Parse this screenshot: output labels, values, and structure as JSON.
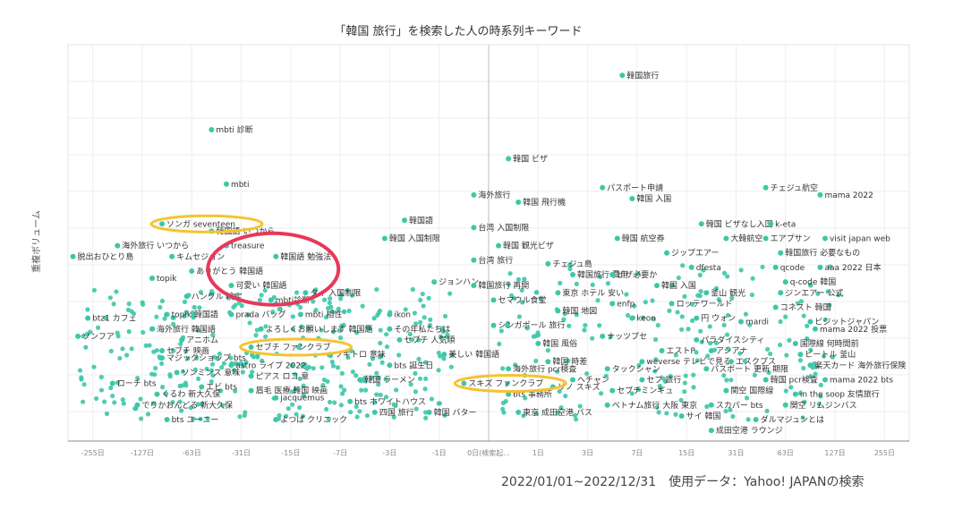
{
  "chart_data": {
    "type": "scatter",
    "title": "「韓国 旅行」を検索した人の時系列キーワード",
    "ylabel": "重複ボリューム",
    "x_ticks": [
      "-255日",
      "-127日",
      "-63日",
      "-31日",
      "-15日",
      "-7日",
      "-3日",
      "-1日",
      "0日(検索起...",
      "1日",
      "3日",
      "7日",
      "15日",
      "31日",
      "63日",
      "127日",
      "255日"
    ],
    "grid": true,
    "point_color": "#3cc7a8",
    "labeled_points": [
      {
        "label": "韓国旅行",
        "x": 2.7,
        "y": 95
      },
      {
        "label": "mbti 診断",
        "x": -5.6,
        "y": 80
      },
      {
        "label": "韓国 ビザ",
        "x": 0.4,
        "y": 72
      },
      {
        "label": "mbti",
        "x": -5.3,
        "y": 65
      },
      {
        "label": "パスポート申請",
        "x": 2.3,
        "y": 64
      },
      {
        "label": "チェジュ航空",
        "x": 5.6,
        "y": 64
      },
      {
        "label": "海外旅行",
        "x": -0.3,
        "y": 62
      },
      {
        "label": "韓国 飛行機",
        "x": 0.6,
        "y": 60
      },
      {
        "label": "韓国 入国",
        "x": 2.9,
        "y": 61
      },
      {
        "label": "mama 2022",
        "x": 6.7,
        "y": 62
      },
      {
        "label": "韓国語",
        "x": -1.7,
        "y": 55
      },
      {
        "label": "ソンガ seventeen",
        "x": -6.6,
        "y": 54
      },
      {
        "label": "韓国 ビザなし入国",
        "x": 4.3,
        "y": 54
      },
      {
        "label": "k-eta",
        "x": 5.7,
        "y": 54
      },
      {
        "label": "台湾 入国制限",
        "x": -0.3,
        "y": 53
      },
      {
        "label": "韓国語 いつから",
        "x": -5.6,
        "y": 52
      },
      {
        "label": "韓国 入国制限",
        "x": -2.1,
        "y": 50
      },
      {
        "label": "韓国 航空券",
        "x": 2.6,
        "y": 50
      },
      {
        "label": "大韓航空",
        "x": 4.8,
        "y": 50
      },
      {
        "label": "エアプサン",
        "x": 5.6,
        "y": 50
      },
      {
        "label": "visit japan web",
        "x": 6.8,
        "y": 50
      },
      {
        "label": "海外旅行 いつから",
        "x": -7.5,
        "y": 48
      },
      {
        "label": "treasure",
        "x": -5.3,
        "y": 48
      },
      {
        "label": "韓国 観光ビザ",
        "x": 0.2,
        "y": 48
      },
      {
        "label": "ジップエアー",
        "x": 3.6,
        "y": 46
      },
      {
        "label": "韓国旅行 必要なもの",
        "x": 5.9,
        "y": 46
      },
      {
        "label": "脱出おひとり島",
        "x": -8.4,
        "y": 45
      },
      {
        "label": "キムセジョン",
        "x": -6.4,
        "y": 45
      },
      {
        "label": "韓国語 勉強法",
        "x": -4.3,
        "y": 45
      },
      {
        "label": "台湾 旅行",
        "x": -0.3,
        "y": 44
      },
      {
        "label": "チェジュ島",
        "x": 1.2,
        "y": 43
      },
      {
        "label": "dfesta",
        "x": 4.1,
        "y": 42
      },
      {
        "label": "qcode",
        "x": 5.8,
        "y": 42
      },
      {
        "label": "aaa 2022 日本",
        "x": 6.7,
        "y": 42
      },
      {
        "label": "ありがとう 韓国語",
        "x": -6.0,
        "y": 41
      },
      {
        "label": "韓国旅行 費用",
        "x": 1.7,
        "y": 40
      },
      {
        "label": "ビザ必要か",
        "x": 2.5,
        "y": 40
      },
      {
        "label": "topik",
        "x": -6.8,
        "y": 39
      },
      {
        "label": "ジョンハン",
        "x": -1.1,
        "y": 38
      },
      {
        "label": "q-code 韓国",
        "x": 6.0,
        "y": 38
      },
      {
        "label": "可愛い 韓国語",
        "x": -5.2,
        "y": 37
      },
      {
        "label": "韓国旅行 再開",
        "x": -0.3,
        "y": 37
      },
      {
        "label": "韓国 入国",
        "x": 3.4,
        "y": 37
      },
      {
        "label": "釜山 観光",
        "x": 4.4,
        "y": 35
      },
      {
        "label": "ジンエアー 公式",
        "x": 5.9,
        "y": 35
      },
      {
        "label": "ハングル 検定",
        "x": -6.1,
        "y": 34
      },
      {
        "label": "mbti診断",
        "x": -4.4,
        "y": 33
      },
      {
        "label": "タイ 入国制限",
        "x": -3.7,
        "y": 35
      },
      {
        "label": "東京 ホテル 安い",
        "x": 1.4,
        "y": 35
      },
      {
        "label": "セマウル食堂",
        "x": 0.1,
        "y": 33
      },
      {
        "label": "enfp",
        "x": 2.5,
        "y": 32
      },
      {
        "label": "ロッテワールド",
        "x": 3.7,
        "y": 32
      },
      {
        "label": "コネスト 韓国",
        "x": 5.8,
        "y": 31
      },
      {
        "label": "韓国 地図",
        "x": 1.4,
        "y": 30
      },
      {
        "label": "btz1 カフェ",
        "x": -8.1,
        "y": 28
      },
      {
        "label": "topik 韓国語",
        "x": -6.5,
        "y": 29
      },
      {
        "label": "prada バッグ",
        "x": -5.2,
        "y": 29
      },
      {
        "label": "mbti 相性",
        "x": -3.8,
        "y": 29
      },
      {
        "label": "ikon",
        "x": -2.0,
        "y": 29
      },
      {
        "label": "keon",
        "x": 2.9,
        "y": 28
      },
      {
        "label": "円 ウォン",
        "x": 4.2,
        "y": 28
      },
      {
        "label": "mardi",
        "x": 5.1,
        "y": 27
      },
      {
        "label": "ビジットジャパン",
        "x": 6.5,
        "y": 27
      },
      {
        "label": "海外旅行 韓国語",
        "x": -6.8,
        "y": 25
      },
      {
        "label": "よろしくお願いします 韓国語",
        "x": -4.6,
        "y": 25
      },
      {
        "label": "その年私たちは",
        "x": -2.0,
        "y": 25
      },
      {
        "label": "シンガポール 旅行",
        "x": 0.1,
        "y": 26
      },
      {
        "label": "mama 2022 投票",
        "x": 6.6,
        "y": 25
      },
      {
        "label": "ソンフア",
        "x": -8.3,
        "y": 23
      },
      {
        "label": "アニホム",
        "x": -6.2,
        "y": 22
      },
      {
        "label": "セブチ 人気順",
        "x": -1.8,
        "y": 22
      },
      {
        "label": "ナッツプセ",
        "x": 2.3,
        "y": 23
      },
      {
        "label": "パラダイスシティ",
        "x": 4.2,
        "y": 22
      },
      {
        "label": "韓国 風俗",
        "x": 1.0,
        "y": 21
      },
      {
        "label": "国際線 何時間前",
        "x": 6.2,
        "y": 21
      },
      {
        "label": "セブチ 映画",
        "x": -6.6,
        "y": 19
      },
      {
        "label": "セブチ ファンクラブ",
        "x": -4.8,
        "y": 20
      },
      {
        "label": "エストP",
        "x": 3.5,
        "y": 19
      },
      {
        "label": "アシアナ",
        "x": 4.5,
        "y": 19
      },
      {
        "label": "ビートル 釜山",
        "x": 6.3,
        "y": 18
      },
      {
        "label": "美しい 韓国語",
        "x": -0.9,
        "y": 18
      },
      {
        "label": "ソキトロ 意味",
        "x": -3.2,
        "y": 18
      },
      {
        "label": "マジックショップ bts",
        "x": -6.6,
        "y": 17
      },
      {
        "label": "韓国 時差",
        "x": 1.2,
        "y": 16
      },
      {
        "label": "weverse テレビで見る",
        "x": 3.1,
        "y": 16
      },
      {
        "label": "エスクプス",
        "x": 4.9,
        "y": 16
      },
      {
        "label": "楽天カード 海外旅行保険",
        "x": 6.5,
        "y": 15
      },
      {
        "label": "astro ライブ 2022",
        "x": -5.2,
        "y": 15
      },
      {
        "label": "bts 誕生日",
        "x": -2.0,
        "y": 15
      },
      {
        "label": "海外旅行 pcr検査",
        "x": 0.4,
        "y": 14
      },
      {
        "label": "タックシャン",
        "x": 2.4,
        "y": 14
      },
      {
        "label": "パスポート 更新 期限",
        "x": 4.4,
        "y": 14
      },
      {
        "label": "ソンミンス 意味",
        "x": -6.3,
        "y": 13
      },
      {
        "label": "ピアス ロコ 意",
        "x": -4.8,
        "y": 12
      },
      {
        "label": "韓国 pcr検査",
        "x": 5.6,
        "y": 11
      },
      {
        "label": "mama 2022 bts",
        "x": 6.8,
        "y": 11
      },
      {
        "label": "ローチ bts",
        "x": -7.6,
        "y": 10
      },
      {
        "label": "エビ bts",
        "x": -5.8,
        "y": 9
      },
      {
        "label": "韓国 ラーメン",
        "x": -2.6,
        "y": 11
      },
      {
        "label": "ヘチャン",
        "x": 1.7,
        "y": 11
      },
      {
        "label": "セブ 旅行",
        "x": 3.1,
        "y": 11
      },
      {
        "label": "スキズ ファンクラブ",
        "x": -0.5,
        "y": 10
      },
      {
        "label": "リノ スキズ",
        "x": 1.3,
        "y": 9
      },
      {
        "label": "セブチミンギュ",
        "x": 2.5,
        "y": 8
      },
      {
        "label": "bts 事務所",
        "x": 0.4,
        "y": 7
      },
      {
        "label": "関空 国際線",
        "x": 4.8,
        "y": 8
      },
      {
        "label": "in the soop 友情旅行",
        "x": 6.2,
        "y": 7
      },
      {
        "label": "くるわ 新大久保",
        "x": -6.7,
        "y": 7
      },
      {
        "label": "眉毛 医療 韓国 映画",
        "x": -4.8,
        "y": 8
      },
      {
        "label": "jacquemus",
        "x": -4.3,
        "y": 6
      },
      {
        "label": "bts ホワイトハウス",
        "x": -2.8,
        "y": 5
      },
      {
        "label": "ベトナム旅行 大阪 東京",
        "x": 2.4,
        "y": 4
      },
      {
        "label": "スカパー bts",
        "x": 4.5,
        "y": 4
      },
      {
        "label": "関空 リムジンバス",
        "x": 6.0,
        "y": 4
      },
      {
        "label": "でりかおんどる 新大久保",
        "x": -7.1,
        "y": 4
      },
      {
        "label": "四国 旅行",
        "x": -2.3,
        "y": 2
      },
      {
        "label": "韓国 バター",
        "x": -1.2,
        "y": 2
      },
      {
        "label": "東京 成田空港 バス",
        "x": 0.6,
        "y": 2
      },
      {
        "label": "サイ 韓国",
        "x": 3.9,
        "y": 1
      },
      {
        "label": "ダルマジュンとは",
        "x": 5.4,
        "y": 0
      },
      {
        "label": "bts ユーニー",
        "x": -6.5,
        "y": 0
      },
      {
        "label": "よつば クリニック",
        "x": -4.3,
        "y": 0
      },
      {
        "label": "成田空港 ラウンジ",
        "x": 4.5,
        "y": -3
      }
    ],
    "highlights": [
      {
        "label": "ソンガ seventeen",
        "style": "orange-ellipse"
      },
      {
        "label": "セブチ ファンクラブ",
        "style": "orange-ellipse"
      },
      {
        "label": "スキズ ファンクラブ",
        "style": "orange-ellipse"
      },
      {
        "label": "韓国語 勉強法 / ありがとう 韓国語",
        "style": "red-ellipse"
      }
    ]
  },
  "footer": "2022/01/01~2022/12/31　使用データ：Yahoo! JAPANの検索"
}
